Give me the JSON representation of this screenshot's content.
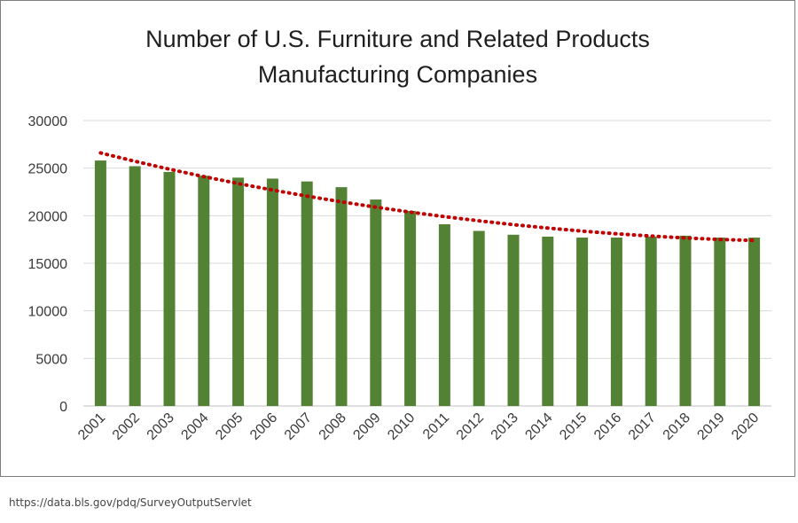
{
  "source_note": "https://data.bls.gov/pdq/SurveyOutputServlet",
  "colors": {
    "bar": "#548235",
    "trend": "#c00000",
    "grid": "#d9d9d9"
  },
  "chart_data": {
    "type": "bar",
    "title_lines": [
      "Number of U.S. Furniture and Related Products",
      "Manufacturing Companies"
    ],
    "xlabel": "",
    "ylabel": "",
    "ylim": [
      0,
      30000
    ],
    "yticks": [
      0,
      5000,
      10000,
      15000,
      20000,
      25000,
      30000
    ],
    "ytick_labels": [
      "0",
      "5000",
      "10000",
      "15000",
      "20000",
      "25000",
      "30000"
    ],
    "grid": true,
    "legend": "none",
    "categories": [
      "2001",
      "2002",
      "2003",
      "2004",
      "2005",
      "2006",
      "2007",
      "2008",
      "2009",
      "2010",
      "2011",
      "2012",
      "2013",
      "2014",
      "2015",
      "2016",
      "2017",
      "2018",
      "2019",
      "2020"
    ],
    "values": [
      25800,
      25200,
      24600,
      24200,
      24000,
      23900,
      23600,
      23000,
      21700,
      20500,
      19100,
      18400,
      18000,
      17800,
      17700,
      17700,
      17800,
      17900,
      17700,
      17700
    ],
    "trendline": {
      "type": "polynomial",
      "style": "dotted",
      "values": [
        26600,
        25720,
        24890,
        24110,
        23380,
        22700,
        22060,
        21460,
        20900,
        20380,
        19900,
        19460,
        19060,
        18700,
        18380,
        18100,
        17860,
        17660,
        17500,
        17400
      ]
    }
  }
}
